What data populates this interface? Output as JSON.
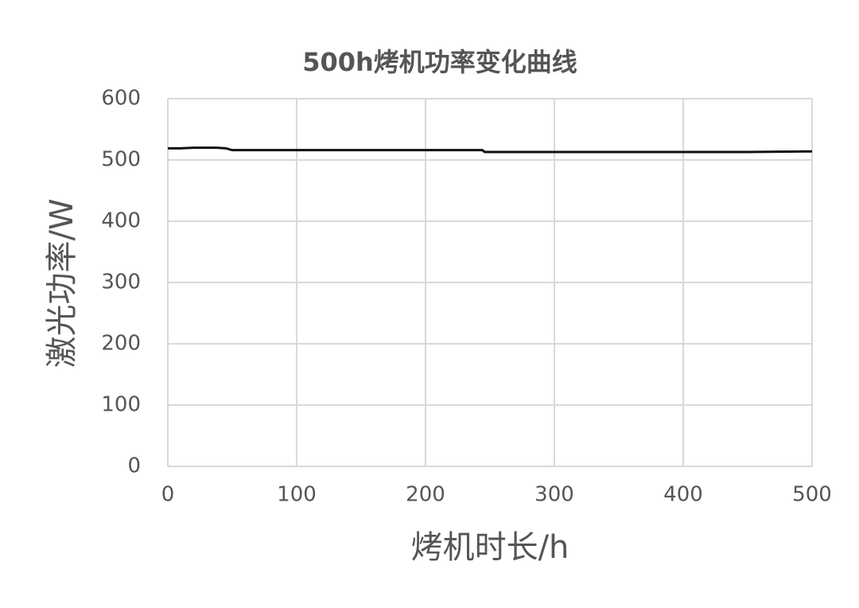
{
  "chart_data": {
    "type": "line",
    "title": "500h烤机功率变化曲线",
    "x_label": "烤机时长/h",
    "y_label": "激光功率/W",
    "x": [
      0,
      10,
      20,
      30,
      38,
      45,
      50,
      100,
      150,
      200,
      244,
      246,
      300,
      350,
      400,
      450,
      500
    ],
    "series": [
      {
        "name": "激光功率",
        "color": "#111111",
        "values": [
          519,
          519,
          520,
          520,
          520,
          519,
          516,
          516,
          516,
          516,
          516,
          513,
          513,
          513,
          513,
          513,
          514
        ]
      }
    ],
    "xlim": [
      0,
      500
    ],
    "xticks": [
      0,
      100,
      200,
      300,
      400,
      500
    ],
    "ylim": [
      0,
      600
    ],
    "yticks": [
      0,
      100,
      200,
      300,
      400,
      500,
      600
    ],
    "grid": true
  }
}
